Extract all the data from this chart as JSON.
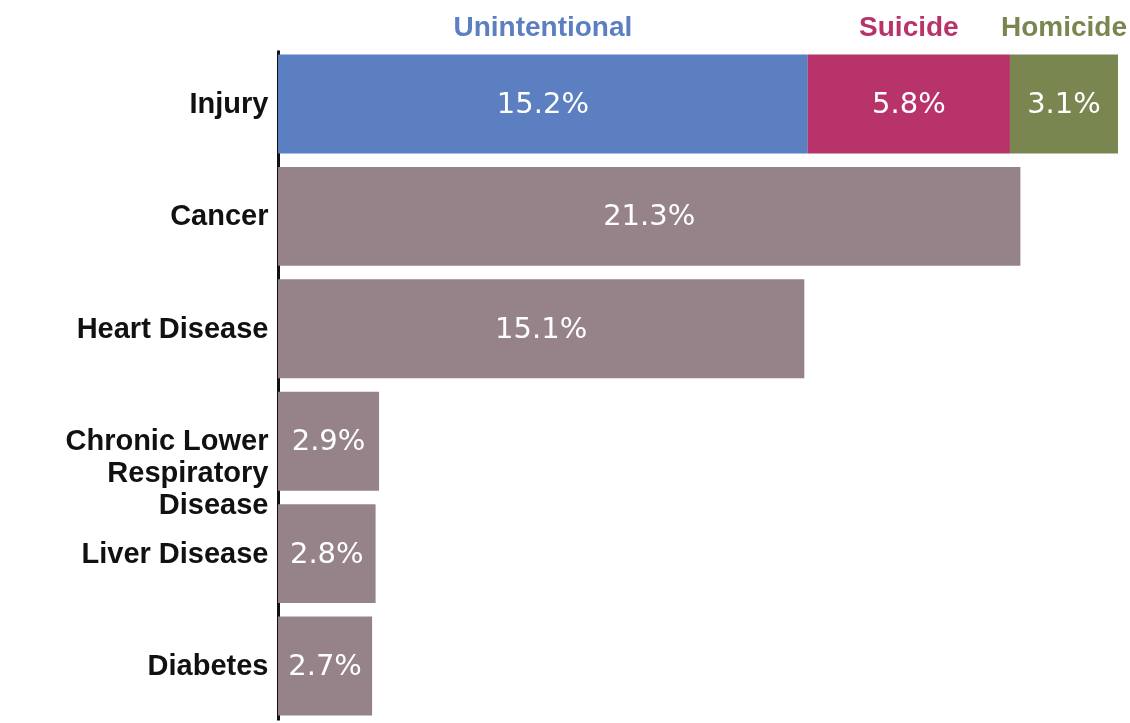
{
  "chart_data": {
    "type": "bar",
    "orientation": "horizontal",
    "stacked": true,
    "legend": "top",
    "categories": [
      "Injury",
      "Cancer",
      "Heart Disease",
      "Chronic Lower Respiratory Disease",
      "Liver Disease",
      "Diabetes"
    ],
    "series": [
      {
        "name": "Unintentional",
        "color": "#5b7fc1",
        "values": [
          15.2,
          null,
          null,
          null,
          null,
          null
        ],
        "value_labels": [
          "15.2%",
          null,
          null,
          null,
          null,
          null
        ]
      },
      {
        "name": "Suicide",
        "color": "#b8336a",
        "values": [
          5.8,
          null,
          null,
          null,
          null,
          null
        ],
        "value_labels": [
          "5.8%",
          null,
          null,
          null,
          null,
          null
        ]
      },
      {
        "name": "Homicide",
        "color": "#7a8650",
        "values": [
          3.1,
          null,
          null,
          null,
          null,
          null
        ],
        "value_labels": [
          "3.1%",
          null,
          null,
          null,
          null,
          null
        ]
      },
      {
        "color": "#968389",
        "values": [
          null,
          21.3,
          15.1,
          2.9,
          2.8,
          2.7
        ],
        "value_labels": [
          null,
          "21.3%",
          "15.1%",
          "2.9%",
          "2.8%",
          "2.7%"
        ]
      }
    ]
  }
}
